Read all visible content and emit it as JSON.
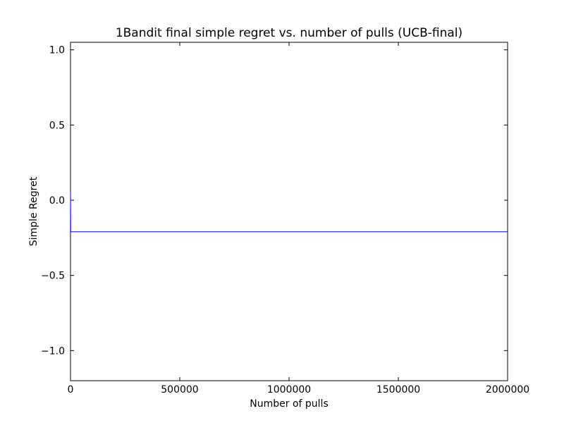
{
  "chart_data": {
    "type": "line",
    "title": "1Bandit final simple regret vs. number of pulls (UCB-final)",
    "xlabel": "Number of pulls",
    "ylabel": "Simple Regret",
    "xlim": [
      0,
      2000000
    ],
    "ylim": [
      -1.2,
      1.05
    ],
    "xticks": [
      0,
      500000,
      1000000,
      1500000,
      2000000
    ],
    "xtick_labels": [
      "0",
      "500000",
      "1000000",
      "1500000",
      "2000000"
    ],
    "yticks": [
      -1.0,
      -0.5,
      0.0,
      0.5,
      1.0
    ],
    "ytick_labels": [
      "−1.0",
      "−0.5",
      "0.0",
      "0.5",
      "1.0"
    ],
    "grid": false,
    "series": [
      {
        "color": "#0000ff",
        "x": [
          1,
          1000,
          2000,
          5000,
          10000,
          100000,
          500000,
          1000000,
          1500000,
          2000000
        ],
        "y": [
          0.05,
          -0.21,
          -0.21,
          -0.21,
          -0.21,
          -0.21,
          -0.21,
          -0.21,
          -0.21,
          -0.21
        ]
      }
    ]
  }
}
